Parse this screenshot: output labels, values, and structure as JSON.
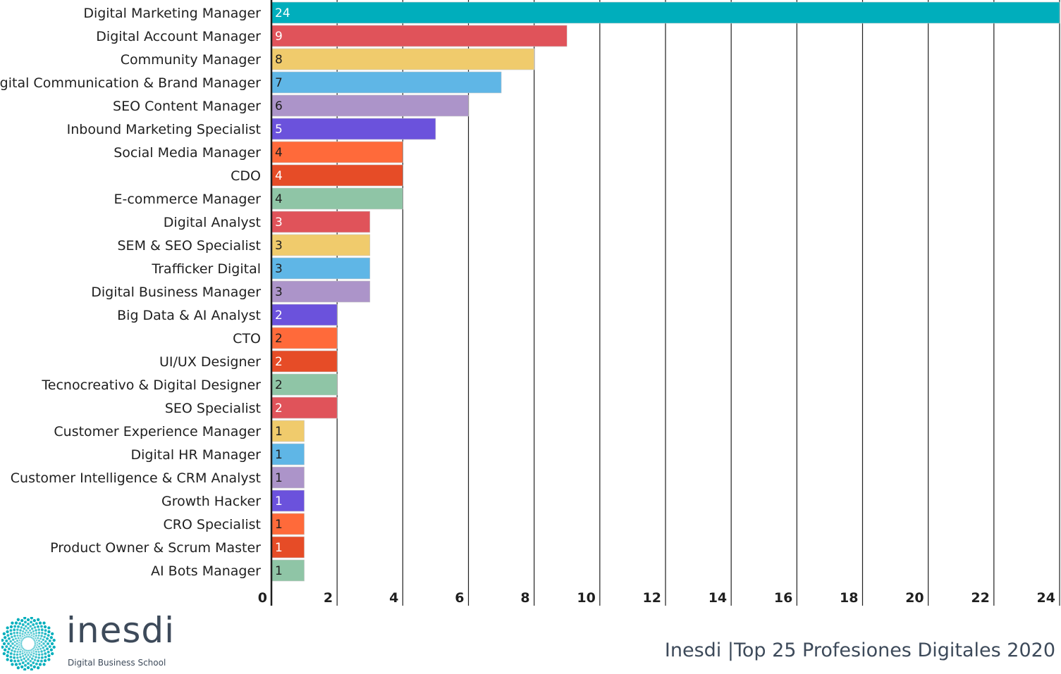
{
  "chart_data": {
    "type": "bar",
    "orientation": "horizontal",
    "categories": [
      "Digital Marketing Manager",
      "Digital Account Manager",
      "Community Manager",
      "Digital Communication & Brand Manager",
      "SEO Content Manager",
      "Inbound Marketing Specialist",
      "Social Media Manager",
      "CDO",
      "E-commerce Manager",
      "Digital Analyst",
      "SEM & SEO Specialist",
      "Trafficker Digital",
      "Digital Business Manager",
      "Big Data & AI Analyst",
      "CTO",
      "UI/UX Designer",
      "Tecnocreativo & Digital Designer",
      "SEO Specialist",
      "Customer Experience Manager",
      "Digital HR Manager",
      "Customer Intelligence & CRM Analyst",
      "Growth Hacker",
      "CRO Specialist",
      "Product Owner & Scrum Master",
      "AI Bots Manager"
    ],
    "values": [
      24,
      9,
      8,
      7,
      6,
      5,
      4,
      4,
      4,
      3,
      3,
      3,
      3,
      2,
      2,
      2,
      2,
      2,
      1,
      1,
      1,
      1,
      1,
      1,
      1
    ],
    "colors": [
      "#00aebc",
      "#e0535a",
      "#f0cb6c",
      "#5fb6e6",
      "#ac94c9",
      "#6b52dc",
      "#ff6a3a",
      "#e64c27",
      "#8fc5a6",
      "#e0535a",
      "#f0cb6c",
      "#5fb6e6",
      "#ac94c9",
      "#6b52dc",
      "#ff6a3a",
      "#e64c27",
      "#8fc5a6",
      "#e0535a",
      "#f0cb6c",
      "#5fb6e6",
      "#ac94c9",
      "#6b52dc",
      "#ff6a3a",
      "#e64c27",
      "#8fc5a6"
    ],
    "label_colors": [
      "#ffffff",
      "#ffffff",
      "#1f1f1f",
      "#1f1f1f",
      "#1f1f1f",
      "#ffffff",
      "#1f1f1f",
      "#ffffff",
      "#1f1f1f",
      "#ffffff",
      "#1f1f1f",
      "#1f1f1f",
      "#1f1f1f",
      "#ffffff",
      "#1f1f1f",
      "#ffffff",
      "#1f1f1f",
      "#ffffff",
      "#1f1f1f",
      "#1f1f1f",
      "#1f1f1f",
      "#ffffff",
      "#1f1f1f",
      "#ffffff",
      "#1f1f1f"
    ],
    "xlim": [
      0,
      24
    ],
    "xticks": [
      0,
      2,
      4,
      6,
      8,
      10,
      12,
      14,
      16,
      18,
      20,
      22,
      24
    ],
    "grid": true,
    "title": "",
    "xlabel": "",
    "ylabel": ""
  },
  "branding": {
    "logo_word": "inesdi",
    "logo_sub": "Digital Business School",
    "logo_icon": "sunburst-logo-icon",
    "footer_title": "Inesdi |Top 25 Profesiones Digitales 2020",
    "brand_color": "#00aebc",
    "text_color": "#3d4a5a"
  }
}
